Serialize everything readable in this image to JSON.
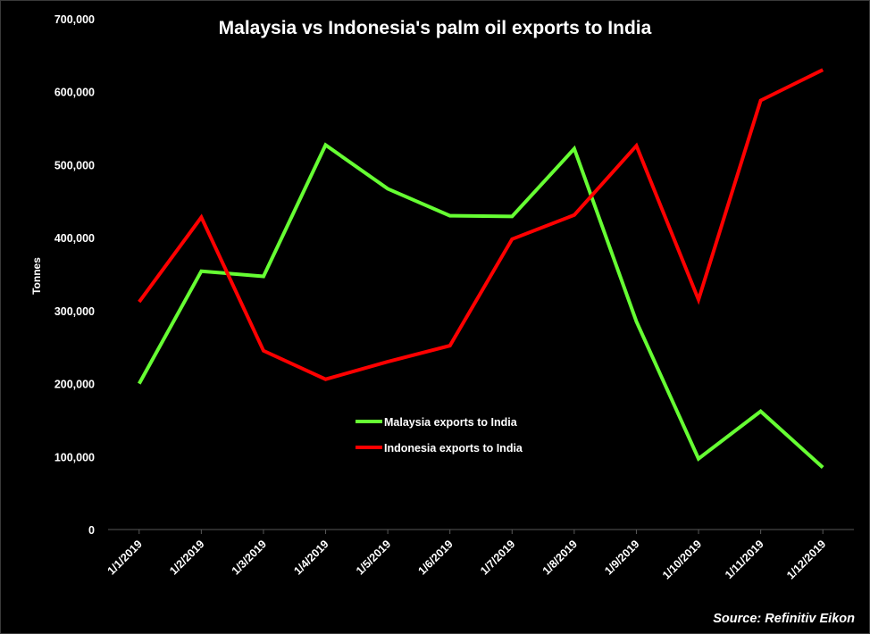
{
  "chart_data": {
    "type": "line",
    "title": "Malaysia vs Indonesia's palm oil exports to India",
    "xlabel": "",
    "ylabel": "Tonnes",
    "categories": [
      "1/1/2019",
      "1/2/2019",
      "1/3/2019",
      "1/4/2019",
      "1/5/2019",
      "1/6/2019",
      "1/7/2019",
      "1/8/2019",
      "1/9/2019",
      "1/10/2019",
      "1/11/2019",
      "1/12/2019"
    ],
    "ylim": [
      0,
      700000
    ],
    "yticks": [
      0,
      100000,
      200000,
      300000,
      400000,
      500000,
      600000,
      700000
    ],
    "ytick_labels": [
      "0",
      "100,000",
      "200,000",
      "300,000",
      "400,000",
      "500,000",
      "600,000",
      "700,000"
    ],
    "grid": false,
    "legend_position": "center",
    "series": [
      {
        "name": "Malaysia exports to India",
        "color": "#66ff33",
        "values": [
          200000,
          354000,
          347000,
          527000,
          467000,
          430000,
          429000,
          522000,
          285000,
          97000,
          162000,
          85000
        ]
      },
      {
        "name": "Indonesia exports to India",
        "color": "#ff0000",
        "values": [
          312000,
          428000,
          245000,
          206000,
          230000,
          252000,
          398000,
          431000,
          526000,
          315000,
          588000,
          630000
        ]
      }
    ],
    "source": "Source: Refinitiv Eikon"
  },
  "colors": {
    "background": "#000000",
    "text": "#ffffff",
    "axis": "#595959"
  }
}
